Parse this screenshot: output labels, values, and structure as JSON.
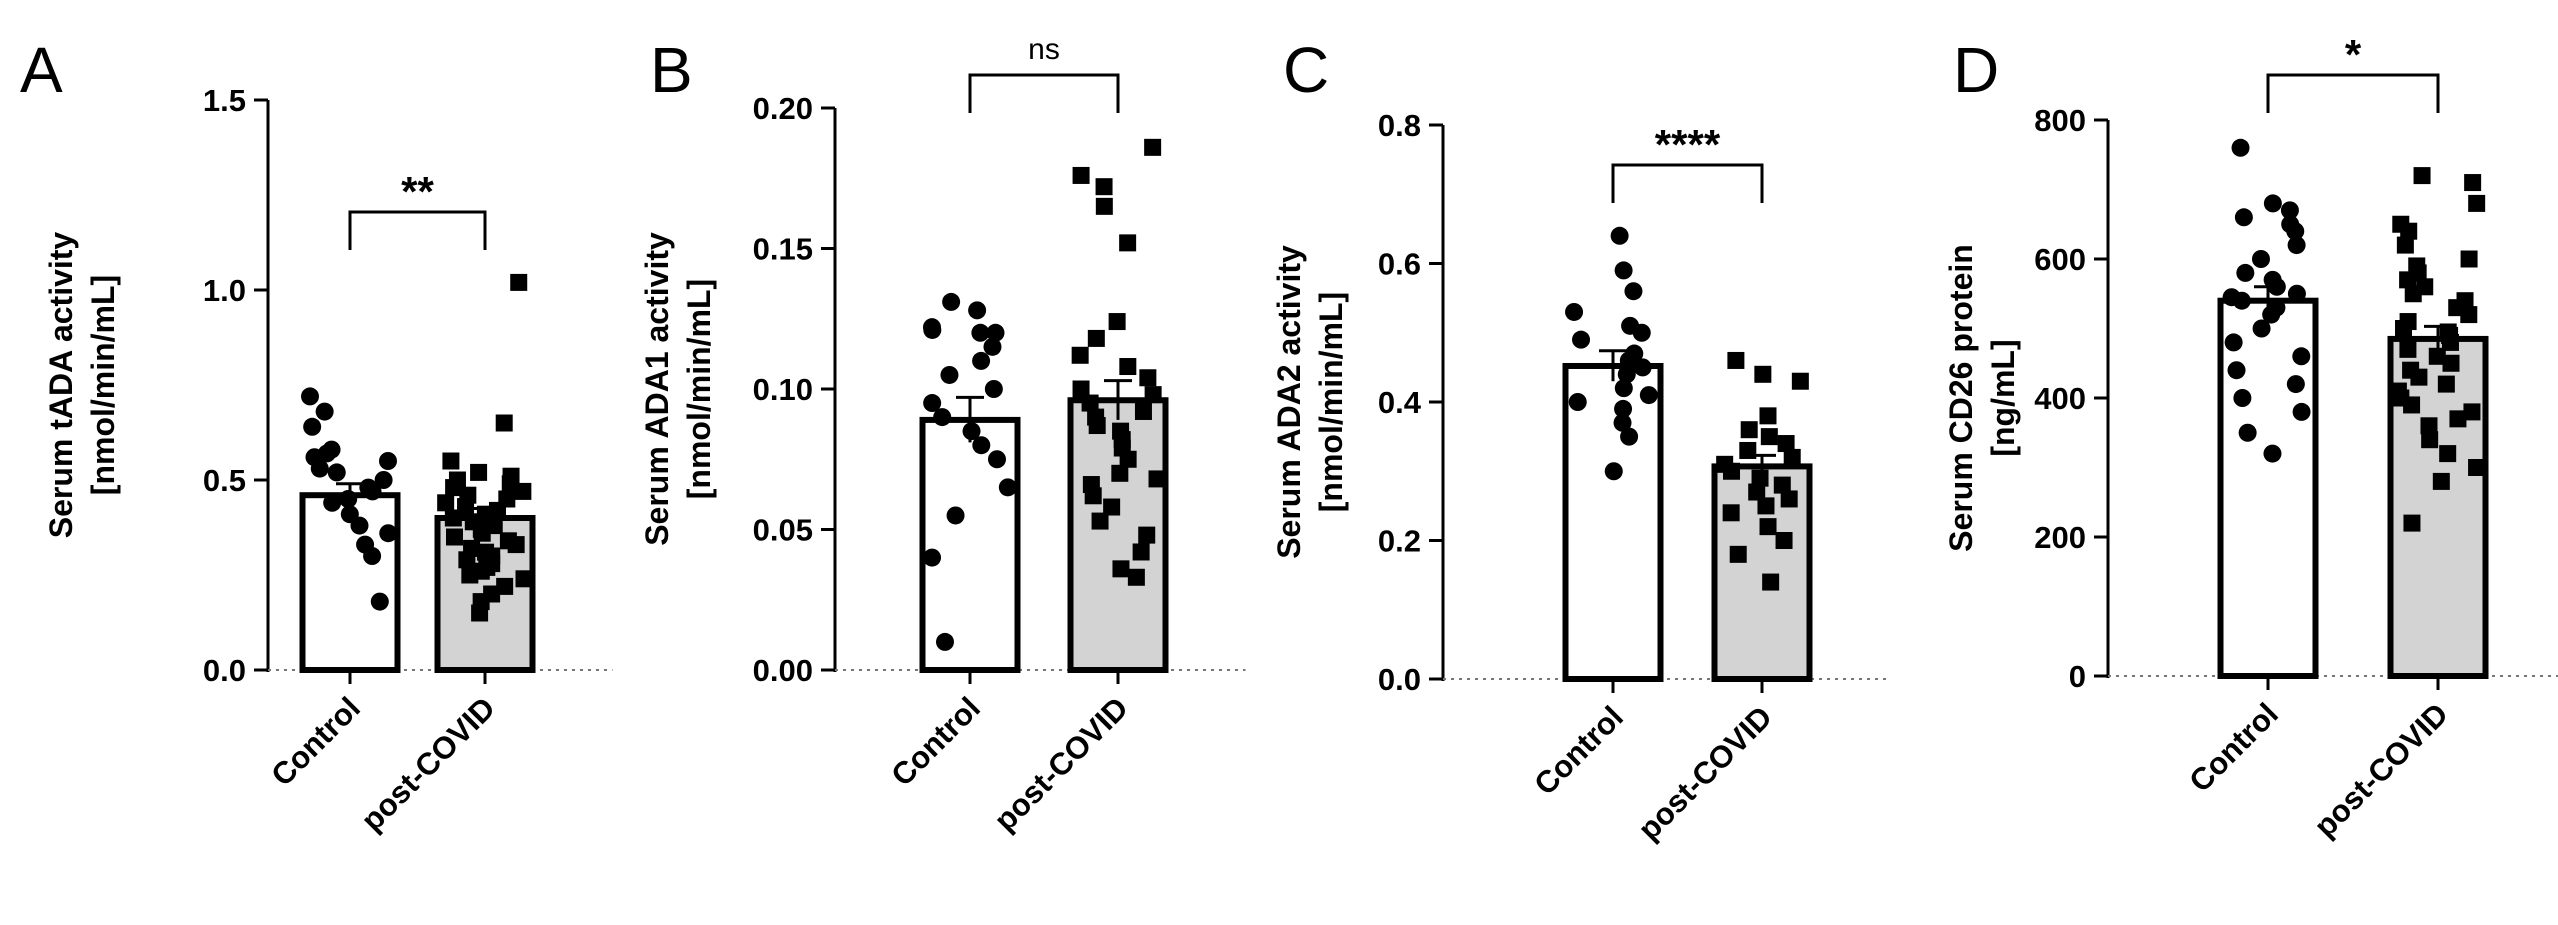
{
  "chart_data": [
    {
      "type": "bar",
      "panel": "A",
      "categories": [
        "Control",
        "post-COVID"
      ],
      "values": [
        0.46,
        0.4
      ],
      "sem": [
        0.03,
        0.025
      ],
      "ylabel_line1": "Serum tADA activity",
      "ylabel_line2": "[nmol/min/mL]",
      "ylim": [
        0,
        1.5
      ],
      "yticks": [
        0.0,
        0.5,
        1.0,
        1.5
      ],
      "ytick_labels": [
        "0.0",
        "0.5",
        "1.0",
        "1.5"
      ],
      "significance": "**",
      "bar_colors": [
        "#ffffff",
        "#d3d3d3"
      ],
      "points": [
        [
          0.72,
          0.68,
          0.64,
          0.58,
          0.57,
          0.56,
          0.55,
          0.53,
          0.52,
          0.5,
          0.48,
          0.47,
          0.45,
          0.44,
          0.41,
          0.38,
          0.36,
          0.33,
          0.3,
          0.18
        ],
        [
          1.02,
          0.65,
          0.55,
          0.52,
          0.51,
          0.5,
          0.49,
          0.48,
          0.47,
          0.46,
          0.45,
          0.44,
          0.43,
          0.42,
          0.41,
          0.4,
          0.39,
          0.38,
          0.37,
          0.36,
          0.35,
          0.34,
          0.33,
          0.32,
          0.31,
          0.3,
          0.29,
          0.28,
          0.27,
          0.26,
          0.25,
          0.24,
          0.22,
          0.2,
          0.18,
          0.15
        ]
      ]
    },
    {
      "type": "bar",
      "panel": "B",
      "categories": [
        "Control",
        "post-COVID"
      ],
      "values": [
        0.089,
        0.096
      ],
      "sem": [
        0.008,
        0.007
      ],
      "ylabel_line1": "Serum ADA1 activity",
      "ylabel_line2": "[nmol/min/mL]",
      "ylim": [
        0,
        0.2
      ],
      "yticks": [
        0.0,
        0.05,
        0.1,
        0.15,
        0.2
      ],
      "ytick_labels": [
        "0.00",
        "0.05",
        "0.10",
        "0.15",
        "0.20"
      ],
      "significance": "ns",
      "bar_colors": [
        "#ffffff",
        "#d3d3d3"
      ],
      "points": [
        [
          0.131,
          0.128,
          0.122,
          0.121,
          0.12,
          0.12,
          0.115,
          0.11,
          0.105,
          0.1,
          0.095,
          0.09,
          0.085,
          0.08,
          0.075,
          0.065,
          0.055,
          0.04,
          0.01
        ],
        [
          0.186,
          0.176,
          0.172,
          0.165,
          0.152,
          0.124,
          0.118,
          0.112,
          0.108,
          0.104,
          0.1,
          0.098,
          0.095,
          0.092,
          0.09,
          0.087,
          0.085,
          0.082,
          0.079,
          0.075,
          0.07,
          0.068,
          0.066,
          0.062,
          0.058,
          0.053,
          0.048,
          0.042,
          0.036,
          0.033
        ]
      ]
    },
    {
      "type": "bar",
      "panel": "C",
      "categories": [
        "Control",
        "post-COVID"
      ],
      "values": [
        0.452,
        0.307
      ],
      "sem": [
        0.022,
        0.016
      ],
      "ylabel_line1": "Serum ADA2 activity",
      "ylabel_line2": "[nmol/min/mL]",
      "ylim": [
        0,
        0.8
      ],
      "yticks": [
        0.0,
        0.2,
        0.4,
        0.6,
        0.8
      ],
      "ytick_labels": [
        "0.0",
        "0.2",
        "0.4",
        "0.6",
        "0.8"
      ],
      "significance": "****",
      "bar_colors": [
        "#ffffff",
        "#d3d3d3"
      ],
      "points": [
        [
          0.64,
          0.59,
          0.56,
          0.53,
          0.51,
          0.5,
          0.49,
          0.47,
          0.46,
          0.45,
          0.44,
          0.42,
          0.41,
          0.4,
          0.39,
          0.37,
          0.35,
          0.3
        ],
        [
          0.46,
          0.44,
          0.43,
          0.38,
          0.36,
          0.35,
          0.34,
          0.33,
          0.32,
          0.31,
          0.3,
          0.29,
          0.28,
          0.27,
          0.26,
          0.25,
          0.24,
          0.22,
          0.2,
          0.18,
          0.14
        ]
      ]
    },
    {
      "type": "bar",
      "panel": "D",
      "categories": [
        "Control",
        "post-COVID"
      ],
      "values": [
        540,
        485
      ],
      "sem": [
        20,
        18
      ],
      "ylabel_line1": "Serum CD26 protein",
      "ylabel_line2": "[ng/mL]",
      "ylim": [
        0,
        800
      ],
      "yticks": [
        0,
        200,
        400,
        600,
        800
      ],
      "ytick_labels": [
        "0",
        "200",
        "400",
        "600",
        "800"
      ],
      "significance": "*",
      "bar_colors": [
        "#ffffff",
        "#d3d3d3"
      ],
      "points": [
        [
          760,
          680,
          670,
          660,
          650,
          640,
          620,
          600,
          580,
          570,
          560,
          550,
          545,
          540,
          530,
          520,
          500,
          480,
          460,
          440,
          420,
          400,
          380,
          350,
          320
        ],
        [
          720,
          710,
          680,
          650,
          640,
          620,
          600,
          590,
          580,
          570,
          560,
          550,
          540,
          530,
          520,
          510,
          500,
          495,
          490,
          480,
          470,
          460,
          450,
          440,
          430,
          420,
          410,
          400,
          390,
          380,
          370,
          360,
          340,
          320,
          300,
          280,
          220
        ]
      ]
    }
  ]
}
